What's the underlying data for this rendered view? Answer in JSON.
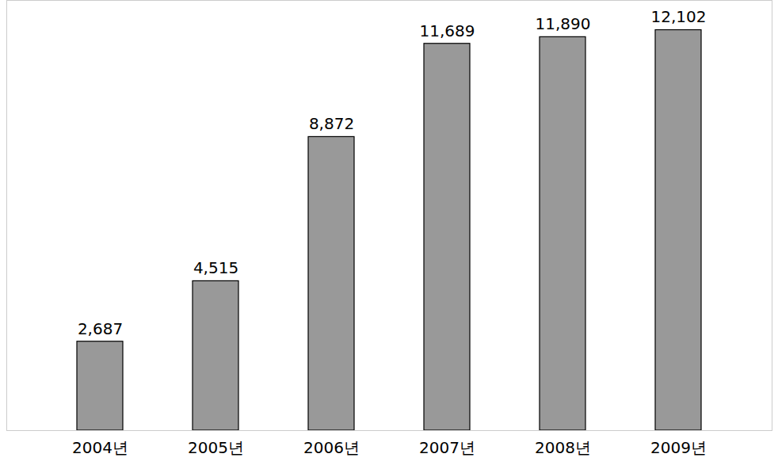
{
  "chart_data": {
    "type": "bar",
    "categories": [
      "2004년",
      "2005년",
      "2006년",
      "2007년",
      "2008년",
      "2009년"
    ],
    "values": [
      2687,
      4515,
      8872,
      11689,
      11890,
      12102
    ],
    "value_labels": [
      "2,687",
      "4,515",
      "8,872",
      "11,689",
      "11,890",
      "12,102"
    ],
    "color": "#999999",
    "ylim": [
      0,
      13000
    ],
    "yticks": [],
    "grid": false,
    "data_labels": true,
    "tick_labels": "x"
  }
}
